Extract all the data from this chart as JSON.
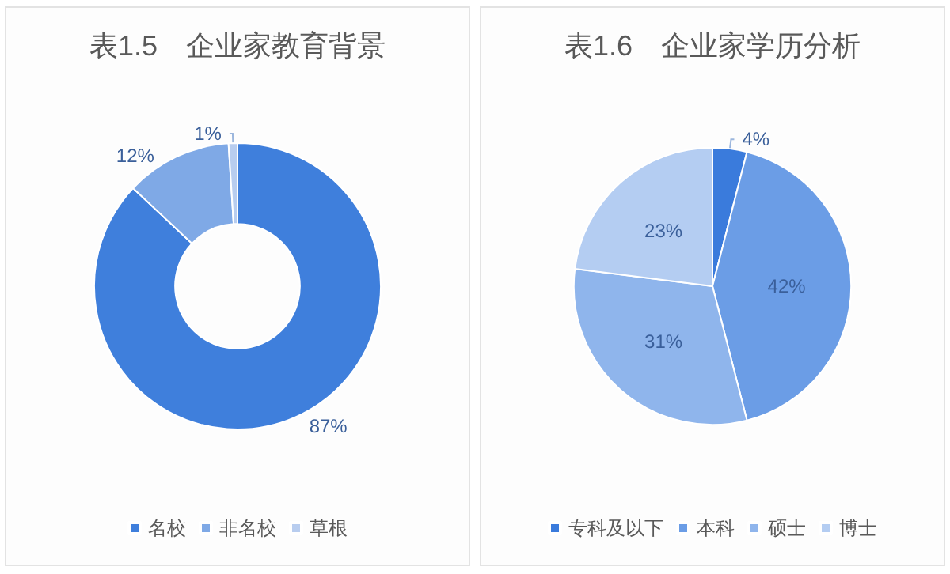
{
  "chart_data": [
    {
      "type": "donut",
      "title": "表1.5　企业家教育背景",
      "categories": [
        "名校",
        "非名校",
        "草根"
      ],
      "values": [
        87,
        12,
        1
      ],
      "value_labels": [
        "87%",
        "12%",
        "1%"
      ],
      "colors": [
        "#3f7fdc",
        "#7fa9e6",
        "#b8cdef"
      ],
      "legend": "bottom"
    },
    {
      "type": "pie",
      "title": "表1.6　企业家学历分析",
      "categories": [
        "专科及以下",
        "本科",
        "硕士",
        "博士"
      ],
      "values": [
        4,
        42,
        31,
        23
      ],
      "value_labels": [
        "4%",
        "42%",
        "31%",
        "23%"
      ],
      "colors": [
        "#3a7bdc",
        "#6b9de6",
        "#8fb5ec",
        "#b4cdf2"
      ],
      "legend": "bottom"
    }
  ]
}
